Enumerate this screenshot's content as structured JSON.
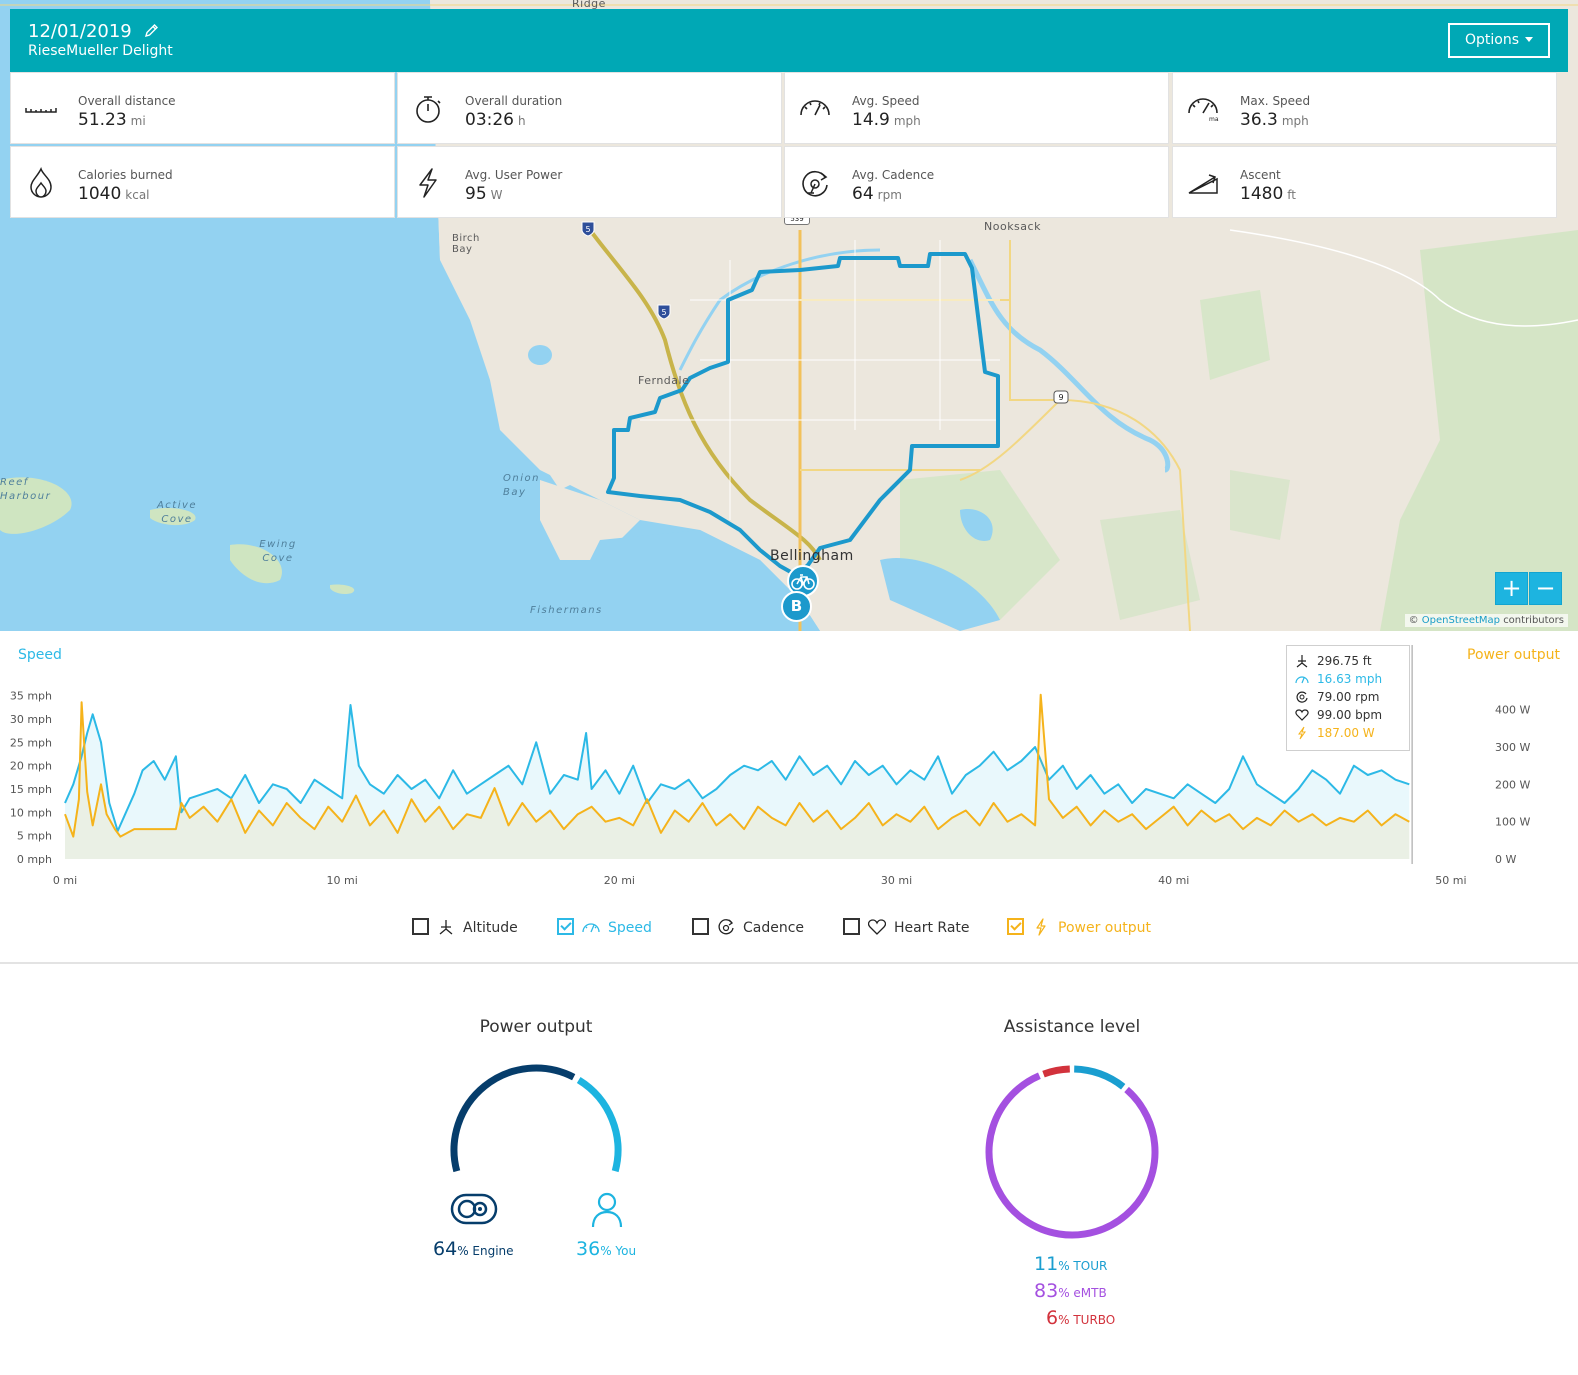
{
  "header": {
    "date": "12/01/2019",
    "bike_name": "RieseMueller Delight",
    "options_label": "Options"
  },
  "stats": [
    {
      "label": "Overall distance",
      "value": "51.23",
      "unit": "mi",
      "icon": "ruler-icon"
    },
    {
      "label": "Overall duration",
      "value": "03:26",
      "unit": "h",
      "icon": "stopwatch-icon"
    },
    {
      "label": "Avg. Speed",
      "value": "14.9",
      "unit": "mph",
      "icon": "speedometer-icon"
    },
    {
      "label": "Max. Speed",
      "value": "36.3",
      "unit": "mph",
      "icon": "max-speedometer-icon"
    },
    {
      "label": "Calories burned",
      "value": "1040",
      "unit": "kcal",
      "icon": "flame-icon"
    },
    {
      "label": "Avg. User Power",
      "value": "95",
      "unit": "W",
      "icon": "lightning-icon"
    },
    {
      "label": "Avg. Cadence",
      "value": "64",
      "unit": "rpm",
      "icon": "cadence-icon"
    },
    {
      "label": "Ascent",
      "value": "1480",
      "unit": "ft",
      "icon": "ascent-icon"
    }
  ],
  "map": {
    "labels": [
      "Ridge",
      "Nooksack",
      "Birch Bay",
      "Ferndale",
      "Bellingham",
      "Onion Bay",
      "Reef Harbour",
      "Active Cove",
      "Ewing Cove",
      "Fishermans"
    ],
    "highway_shields": [
      "5",
      "5",
      "9",
      "539"
    ],
    "end_marker": "B",
    "zoom_in": "+",
    "zoom_out": "−",
    "attribution_prefix": "©",
    "attribution_link": "OpenStreetMap",
    "attribution_suffix": "contributors"
  },
  "chart_data": {
    "type": "line",
    "title_left": "Speed",
    "title_right": "Power output",
    "x_label_unit": "mi",
    "x_ticks": [
      "0 mi",
      "10 mi",
      "20 mi",
      "30 mi",
      "40 mi",
      "50 mi"
    ],
    "xlim": [
      0,
      51.23
    ],
    "y_left_ticks": [
      "0 mph",
      "5 mph",
      "10 mph",
      "15 mph",
      "20 mph",
      "25 mph",
      "30 mph",
      "35 mph"
    ],
    "ylim_left": [
      0,
      36
    ],
    "y_right_ticks": [
      "0 W",
      "100 W",
      "200 W",
      "300 W",
      "400 W"
    ],
    "ylim_right": [
      0,
      450
    ],
    "colors": {
      "speed": "#2cb9e6",
      "power": "#f5b31b"
    },
    "series": [
      {
        "name": "Speed",
        "axis": "left",
        "x": [
          0,
          0.3,
          0.6,
          0.8,
          1.0,
          1.3,
          1.6,
          1.9,
          2.2,
          2.5,
          2.8,
          3.2,
          3.6,
          4.0,
          4.2,
          4.5,
          5,
          5.5,
          6,
          6.5,
          7,
          7.5,
          8,
          8.5,
          9,
          9.5,
          10,
          10.3,
          10.6,
          11,
          11.5,
          12,
          12.5,
          13,
          13.5,
          14,
          14.5,
          15,
          15.5,
          16,
          16.5,
          17,
          17.5,
          18,
          18.5,
          18.8,
          19,
          19.5,
          20,
          20.5,
          21,
          21.5,
          22,
          22.5,
          23,
          23.5,
          24,
          24.5,
          25,
          25.5,
          26,
          26.5,
          27,
          27.5,
          28,
          28.5,
          29,
          29.5,
          30,
          30.5,
          31,
          31.5,
          32,
          32.5,
          33,
          33.5,
          34,
          34.5,
          35,
          35.5,
          36,
          36.5,
          37,
          37.5,
          38,
          38.5,
          39,
          39.5,
          40,
          40.5,
          41,
          41.5,
          42,
          42.5,
          43,
          43.5,
          44,
          44.5,
          45,
          45.5,
          46,
          46.5,
          47,
          47.5,
          48,
          48.5
        ],
        "values": [
          12,
          16,
          22,
          27,
          31,
          25,
          12,
          6,
          10,
          14,
          19,
          21,
          17,
          22,
          10,
          13,
          14,
          15,
          13,
          18,
          12,
          16,
          15,
          12,
          17,
          15,
          13,
          33,
          20,
          16,
          14,
          18,
          15,
          17,
          13,
          19,
          14,
          16,
          18,
          20,
          16,
          25,
          14,
          18,
          17,
          27,
          15,
          19,
          14,
          20,
          12,
          16,
          15,
          17,
          13,
          15,
          18,
          20,
          19,
          21,
          17,
          22,
          18,
          20,
          16,
          21,
          18,
          20,
          16,
          19,
          17,
          22,
          14,
          18,
          20,
          23,
          19,
          21,
          24,
          17,
          20,
          15,
          18,
          14,
          16,
          12,
          15,
          14,
          13,
          16,
          14,
          12,
          15,
          22,
          16,
          14,
          12,
          15,
          19,
          17,
          14,
          20,
          18,
          19,
          17,
          16
        ]
      },
      {
        "name": "Power output",
        "axis": "right",
        "x": [
          0,
          0.3,
          0.5,
          0.6,
          0.8,
          1.0,
          1.3,
          1.5,
          1.8,
          2.0,
          2.5,
          3.0,
          3.5,
          4.0,
          4.2,
          4.5,
          5,
          5.5,
          6,
          6.5,
          7,
          7.5,
          8,
          8.5,
          9,
          9.5,
          10,
          10.5,
          11,
          11.5,
          12,
          12.5,
          13,
          13.5,
          14,
          14.5,
          15,
          15.5,
          16,
          16.5,
          17,
          17.5,
          18,
          18.5,
          19,
          19.5,
          20,
          20.5,
          21,
          21.5,
          22,
          22.5,
          23,
          23.5,
          24,
          24.5,
          25,
          25.5,
          26,
          26.5,
          27,
          27.5,
          28,
          28.5,
          29,
          29.5,
          30,
          30.5,
          31,
          31.5,
          32,
          32.5,
          33,
          33.5,
          34,
          34.5,
          35,
          35.2,
          35.5,
          36,
          36.5,
          37,
          37.5,
          38,
          38.5,
          39,
          39.5,
          40,
          40.5,
          41,
          41.5,
          42,
          42.5,
          43,
          43.5,
          44,
          44.5,
          45,
          45.5,
          46,
          46.5,
          47,
          47.5,
          48,
          48.5
        ],
        "values": [
          120,
          60,
          160,
          420,
          180,
          90,
          200,
          120,
          80,
          60,
          80,
          80,
          80,
          80,
          150,
          110,
          140,
          100,
          160,
          70,
          130,
          90,
          150,
          110,
          80,
          140,
          100,
          170,
          90,
          130,
          70,
          160,
          100,
          140,
          80,
          120,
          110,
          190,
          90,
          150,
          100,
          130,
          80,
          120,
          140,
          100,
          110,
          90,
          160,
          70,
          130,
          100,
          150,
          90,
          120,
          80,
          140,
          110,
          90,
          150,
          100,
          130,
          80,
          110,
          150,
          90,
          120,
          100,
          140,
          80,
          110,
          130,
          90,
          150,
          100,
          120,
          90,
          440,
          160,
          110,
          140,
          90,
          130,
          100,
          120,
          80,
          110,
          140,
          90,
          130,
          100,
          120,
          80,
          110,
          90,
          130,
          100,
          120,
          90,
          110,
          100,
          130,
          90,
          120,
          100
        ]
      }
    ]
  },
  "tooltip": {
    "altitude": "296.75 ft",
    "speed": "16.63 mph",
    "cadence": "79.00 rpm",
    "heart_rate": "99.00 bpm",
    "power": "187.00 W"
  },
  "legend": [
    {
      "label": "Altitude",
      "checked": false
    },
    {
      "label": "Speed",
      "checked": true
    },
    {
      "label": "Cadence",
      "checked": false
    },
    {
      "label": "Heart Rate",
      "checked": false
    },
    {
      "label": "Power output",
      "checked": true
    }
  ],
  "power_output": {
    "title": "Power output",
    "engine_pct": 64,
    "engine_pct_label": "64",
    "engine_label": "Engine",
    "you_pct": 36,
    "you_pct_label": "36",
    "you_label": "You",
    "pct_sign": "%",
    "colors": {
      "engine": "#063d6b",
      "you": "#1db4e0"
    }
  },
  "assistance_level": {
    "title": "Assistance level",
    "levels": [
      {
        "name": "TOUR",
        "pct": 11,
        "pct_label": "11",
        "color": "#1a9ed0"
      },
      {
        "name": "eMTB",
        "pct": 83,
        "pct_label": "83",
        "color": "#a450e0"
      },
      {
        "name": "TURBO",
        "pct": 6,
        "pct_label": "6",
        "color": "#d2323c"
      }
    ],
    "pct_sign": "%"
  }
}
